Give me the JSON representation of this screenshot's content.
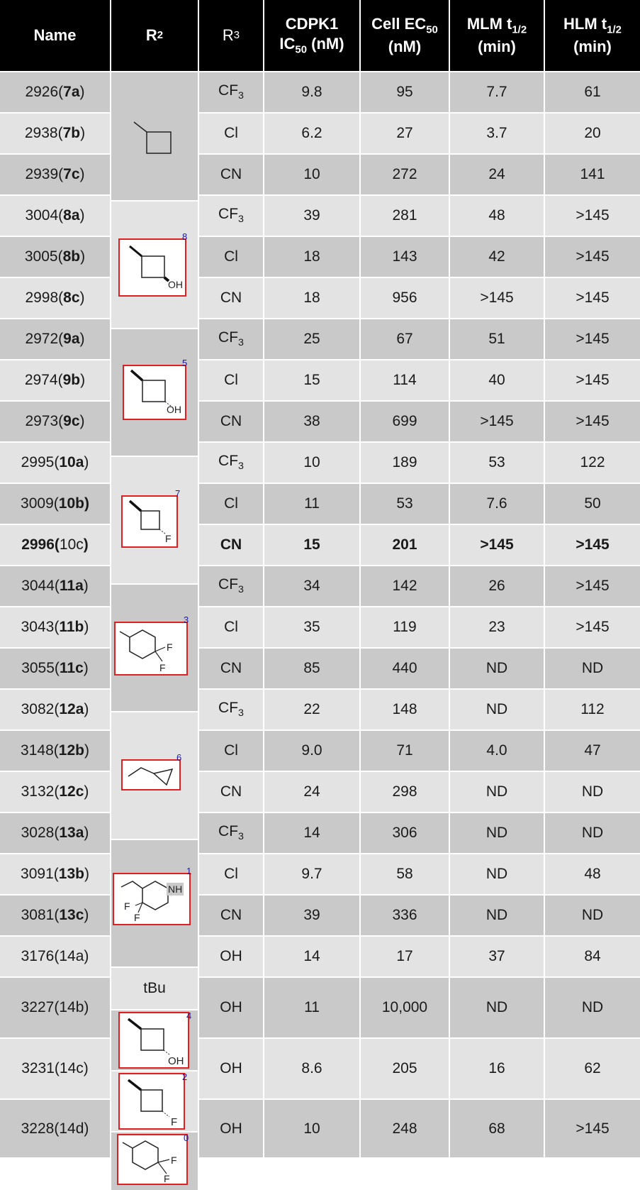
{
  "header": {
    "name": "Name",
    "r2": "R",
    "r2_sub": "2",
    "r3": "R",
    "r3_sub": "3",
    "cdpk1_line1": "CDPK1",
    "cdpk1_line2_pre": "IC",
    "cdpk1_line2_sub": "50",
    "cdpk1_line2_post": " (nM)",
    "cell_line1_pre": "Cell EC",
    "cell_line1_sub": "50",
    "cell_line2": "(nM)",
    "mlm_line1_pre": "MLM t",
    "mlm_line1_sub": "1/2",
    "mlm_line2": "(min)",
    "hlm_line1_pre": "HLM t",
    "hlm_line1_sub": "1/2",
    "hlm_line2": "(min)"
  },
  "rows": [
    {
      "id": "2926",
      "cpd": "7a",
      "r3": "CF3",
      "ic50": "9.8",
      "ec50": "95",
      "mlm": "7.7",
      "hlm": "61"
    },
    {
      "id": "2938",
      "cpd": "7b",
      "r3": "Cl",
      "ic50": "6.2",
      "ec50": "27",
      "mlm": "3.7",
      "hlm": "20"
    },
    {
      "id": "2939",
      "cpd": "7c",
      "r3": "CN",
      "ic50": "10",
      "ec50": "272",
      "mlm": "24",
      "hlm": "141"
    },
    {
      "id": "3004",
      "cpd": "8a",
      "r3": "CF3",
      "ic50": "39",
      "ec50": "281",
      "mlm": "48",
      "hlm": ">145"
    },
    {
      "id": "3005",
      "cpd": "8b",
      "r3": "Cl",
      "ic50": "18",
      "ec50": "143",
      "mlm": "42",
      "hlm": ">145"
    },
    {
      "id": "2998",
      "cpd": "8c",
      "r3": "CN",
      "ic50": "18",
      "ec50": "956",
      "mlm": ">145",
      "hlm": ">145"
    },
    {
      "id": "2972",
      "cpd": "9a",
      "r3": "CF3",
      "ic50": "25",
      "ec50": "67",
      "mlm": "51",
      "hlm": ">145"
    },
    {
      "id": "2974",
      "cpd": "9b",
      "r3": "Cl",
      "ic50": "15",
      "ec50": "114",
      "mlm": "40",
      "hlm": ">145"
    },
    {
      "id": "2973",
      "cpd": "9c",
      "r3": "CN",
      "ic50": "38",
      "ec50": "699",
      "mlm": ">145",
      "hlm": ">145"
    },
    {
      "id": "2995",
      "cpd": "10a",
      "r3": "CF3",
      "ic50": "10",
      "ec50": "189",
      "mlm": "53",
      "hlm": "122"
    },
    {
      "id": "3009",
      "cpd": "10b",
      "r3": "Cl",
      "ic50": "11",
      "ec50": "53",
      "mlm": "7.6",
      "hlm": "50"
    },
    {
      "id": "2996",
      "cpd": "10c",
      "r3": "CN",
      "ic50": "15",
      "ec50": "201",
      "mlm": ">145",
      "hlm": ">145"
    },
    {
      "id": "3044",
      "cpd": "11a",
      "r3": "CF3",
      "ic50": "34",
      "ec50": "142",
      "mlm": "26",
      "hlm": ">145"
    },
    {
      "id": "3043",
      "cpd": "11b",
      "r3": "Cl",
      "ic50": "35",
      "ec50": "119",
      "mlm": "23",
      "hlm": ">145"
    },
    {
      "id": "3055",
      "cpd": "11c",
      "r3": "CN",
      "ic50": "85",
      "ec50": "440",
      "mlm": "ND",
      "hlm": "ND"
    },
    {
      "id": "3082",
      "cpd": "12a",
      "r3": "CF3",
      "ic50": "22",
      "ec50": "148",
      "mlm": "ND",
      "hlm": "112"
    },
    {
      "id": "3148",
      "cpd": "12b",
      "r3": "Cl",
      "ic50": "9.0",
      "ec50": "71",
      "mlm": "4.0",
      "hlm": "47"
    },
    {
      "id": "3132",
      "cpd": "12c",
      "r3": "CN",
      "ic50": "24",
      "ec50": "298",
      "mlm": "ND",
      "hlm": "ND"
    },
    {
      "id": "3028",
      "cpd": "13a",
      "r3": "CF3",
      "ic50": "14",
      "ec50": "306",
      "mlm": "ND",
      "hlm": "ND"
    },
    {
      "id": "3091",
      "cpd": "13b",
      "r3": "Cl",
      "ic50": "9.7",
      "ec50": "58",
      "mlm": "ND",
      "hlm": "48"
    },
    {
      "id": "3081",
      "cpd": "13c",
      "r3": "CN",
      "ic50": "39",
      "ec50": "336",
      "mlm": "ND",
      "hlm": "ND"
    },
    {
      "id": "3176",
      "cpd": "14a",
      "r3": "OH",
      "ic50": "14",
      "ec50": "17",
      "mlm": "37",
      "hlm": "84"
    },
    {
      "id": "3227",
      "cpd": "14b",
      "r3": "OH",
      "ic50": "11",
      "ec50": "10,000",
      "mlm": "ND",
      "hlm": "ND"
    },
    {
      "id": "3231",
      "cpd": "14c",
      "r3": "OH",
      "ic50": "8.6",
      "ec50": "205",
      "mlm": "16",
      "hlm": "62"
    },
    {
      "id": "3228",
      "cpd": "14d",
      "r3": "OH",
      "ic50": "10",
      "ec50": "248",
      "mlm": "68",
      "hlm": ">145"
    }
  ],
  "r2_groups": [
    {
      "structure": "methylcyclobutane-icon",
      "box_number": ""
    },
    {
      "structure": "cis-3-hydroxycyclobutyl-icon",
      "box_number": "8",
      "label": "OH"
    },
    {
      "structure": "trans-3-hydroxycyclobutyl-icon",
      "box_number": "5",
      "label": "OH"
    },
    {
      "structure": "3-fluorocyclobutyl-icon",
      "box_number": "7",
      "label": "F"
    },
    {
      "structure": "4,4-difluorocyclohexyl-icon",
      "box_number": "3",
      "label_1": "F",
      "label_2": "F"
    },
    {
      "structure": "ethylcyclopropane-icon",
      "box_number": "6"
    },
    {
      "structure": "difluoropiperidine-icon",
      "box_number": "1",
      "label_nh": "NH",
      "label_1": "F",
      "label_2": "F"
    },
    {
      "text": "tBu"
    },
    {
      "structure": "hydroxycyclobutyl-icon",
      "box_number": "4",
      "label": "OH"
    },
    {
      "structure": "fluorocyclobutyl-icon",
      "box_number": "2",
      "label": "F"
    },
    {
      "structure": "difluorocyclohexyl-icon",
      "box_number": "0",
      "label_1": "F",
      "label_2": "F"
    }
  ],
  "colors": {
    "header_bg": "#000000",
    "row_dark": "#c9c9c9",
    "row_light": "#e3e3e3",
    "box_red": "#e02020",
    "num_blue": "#1a1aa0"
  }
}
